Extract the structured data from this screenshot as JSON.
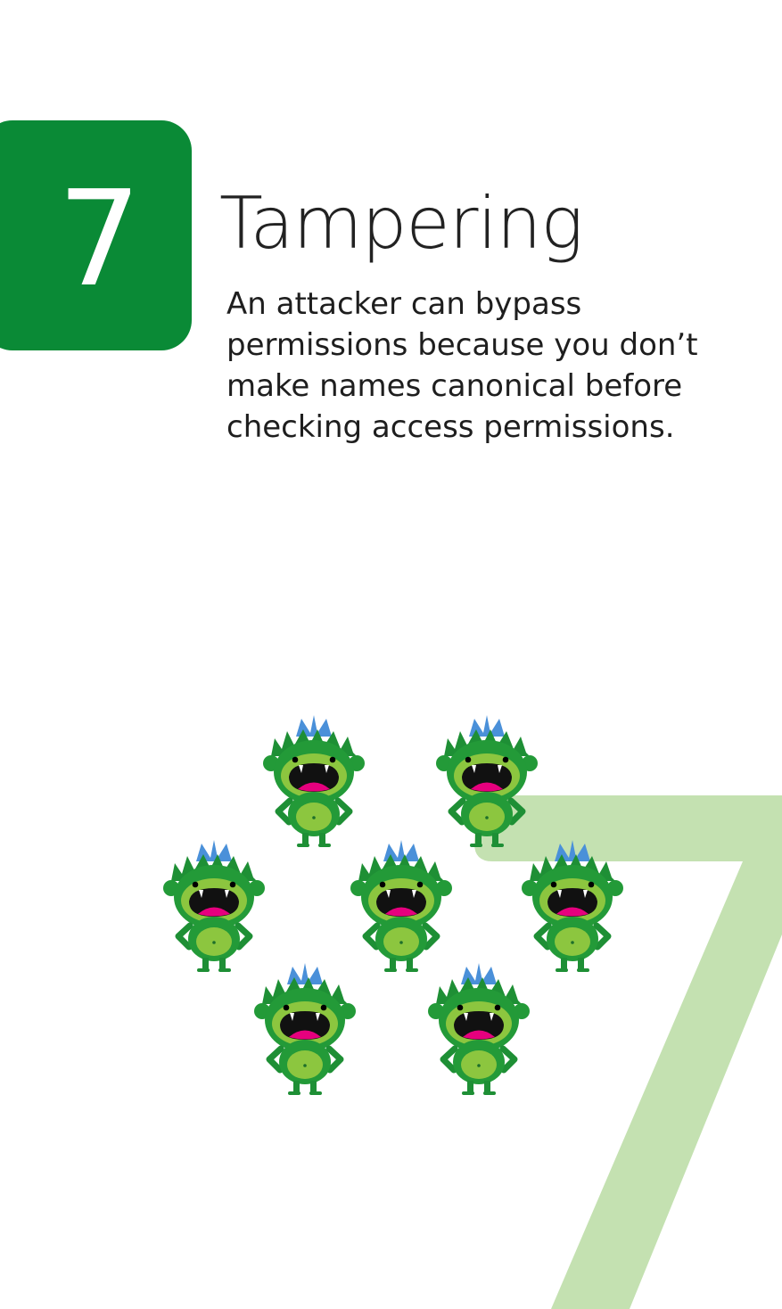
{
  "card": {
    "number": "7",
    "title": "Tampering",
    "description": "An attacker can bypass permissions because you don’t make names canonical before checking access permissions."
  },
  "colors": {
    "badge": "#0a8a36",
    "watermark": "#c4e1b1",
    "monster_body": "#239a38",
    "monster_face": "#8cc63f",
    "monster_crown": "#4a90d9",
    "monster_tongue": "#e6007e"
  },
  "illustration": {
    "icon": "green-monster-icon",
    "count": 7
  }
}
